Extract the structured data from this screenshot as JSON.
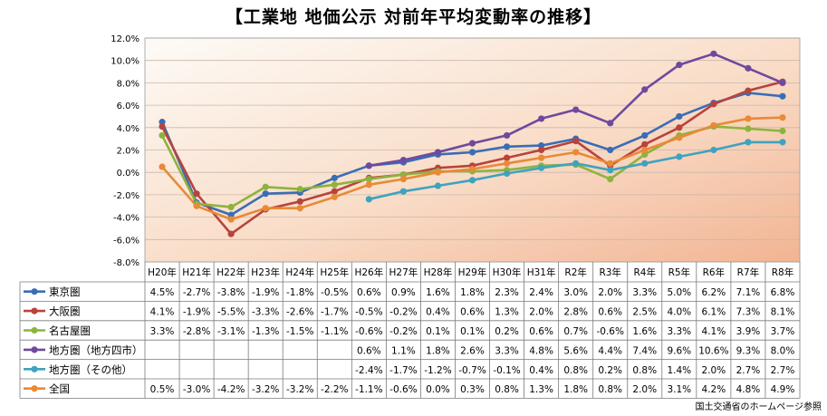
{
  "title": "【工業地 地価公示 対前年平均変動率の推移】",
  "source_note": "国土交通省のホームページ参照",
  "chart_data": {
    "type": "line",
    "title": "【工業地 地価公示 対前年平均変動率の推移】",
    "xlabel": "",
    "ylabel": "",
    "ylim": [
      -8.0,
      12.0
    ],
    "y_tick_step": 2.0,
    "y_tick_labels": [
      "12.0%",
      "10.0%",
      "8.0%",
      "6.0%",
      "4.0%",
      "2.0%",
      "0.0%",
      "-2.0%",
      "-4.0%",
      "-6.0%",
      "-8.0%"
    ],
    "grid": true,
    "plot_background": "gradient-peach",
    "legend_placement": "data-table-left",
    "categories": [
      "H20年",
      "H21年",
      "H22年",
      "H23年",
      "H24年",
      "H25年",
      "H26年",
      "H27年",
      "H28年",
      "H29年",
      "H30年",
      "H31年",
      "R2年",
      "R3年",
      "R4年",
      "R5年",
      "R6年",
      "R7年",
      "R8年"
    ],
    "series": [
      {
        "name": "東京圏",
        "color": "#3a6db5",
        "values": [
          4.5,
          -2.7,
          -3.8,
          -1.9,
          -1.8,
          -0.5,
          0.6,
          0.9,
          1.6,
          1.8,
          2.3,
          2.4,
          3.0,
          2.0,
          3.3,
          5.0,
          6.2,
          7.1,
          6.8
        ],
        "labels": [
          "4.5%",
          "-2.7%",
          "-3.8%",
          "-1.9%",
          "-1.8%",
          "-0.5%",
          "0.6%",
          "0.9%",
          "1.6%",
          "1.8%",
          "2.3%",
          "2.4%",
          "3.0%",
          "2.0%",
          "3.3%",
          "5.0%",
          "6.2%",
          "7.1%",
          "6.8%"
        ]
      },
      {
        "name": "大阪圏",
        "color": "#b8433c",
        "values": [
          4.1,
          -1.9,
          -5.5,
          -3.3,
          -2.6,
          -1.7,
          -0.5,
          -0.2,
          0.4,
          0.6,
          1.3,
          2.0,
          2.8,
          0.6,
          2.5,
          4.0,
          6.1,
          7.3,
          8.1
        ],
        "labels": [
          "4.1%",
          "-1.9%",
          "-5.5%",
          "-3.3%",
          "-2.6%",
          "-1.7%",
          "-0.5%",
          "-0.2%",
          "0.4%",
          "0.6%",
          "1.3%",
          "2.0%",
          "2.8%",
          "0.6%",
          "2.5%",
          "4.0%",
          "6.1%",
          "7.3%",
          "8.1%"
        ]
      },
      {
        "name": "名古屋圏",
        "color": "#8db33f",
        "values": [
          3.3,
          -2.8,
          -3.1,
          -1.3,
          -1.5,
          -1.1,
          -0.6,
          -0.2,
          0.1,
          0.1,
          0.2,
          0.6,
          0.7,
          -0.6,
          1.6,
          3.3,
          4.1,
          3.9,
          3.7
        ],
        "labels": [
          "3.3%",
          "-2.8%",
          "-3.1%",
          "-1.3%",
          "-1.5%",
          "-1.1%",
          "-0.6%",
          "-0.2%",
          "0.1%",
          "0.1%",
          "0.2%",
          "0.6%",
          "0.7%",
          "-0.6%",
          "1.6%",
          "3.3%",
          "4.1%",
          "3.9%",
          "3.7%"
        ]
      },
      {
        "name": "地方圏（地方四市）",
        "color": "#6e4a9e",
        "values": [
          null,
          null,
          null,
          null,
          null,
          null,
          0.6,
          1.1,
          1.8,
          2.6,
          3.3,
          4.8,
          5.6,
          4.4,
          7.4,
          9.6,
          10.6,
          9.3,
          8.0
        ],
        "labels": [
          "",
          "",
          "",
          "",
          "",
          "",
          "0.6%",
          "1.1%",
          "1.8%",
          "2.6%",
          "3.3%",
          "4.8%",
          "5.6%",
          "4.4%",
          "7.4%",
          "9.6%",
          "10.6%",
          "9.3%",
          "8.0%"
        ]
      },
      {
        "name": "地方圏（その他）",
        "color": "#3fa3bf",
        "values": [
          null,
          null,
          null,
          null,
          null,
          null,
          -2.4,
          -1.7,
          -1.2,
          -0.7,
          -0.1,
          0.4,
          0.8,
          0.2,
          0.8,
          1.4,
          2.0,
          2.7,
          2.7
        ],
        "labels": [
          "",
          "",
          "",
          "",
          "",
          "",
          "-2.4%",
          "-1.7%",
          "-1.2%",
          "-0.7%",
          "-0.1%",
          "0.4%",
          "0.8%",
          "0.2%",
          "0.8%",
          "1.4%",
          "2.0%",
          "2.7%",
          "2.7%"
        ]
      },
      {
        "name": "全国",
        "color": "#e88a36",
        "values": [
          0.5,
          -3.0,
          -4.2,
          -3.2,
          -3.2,
          -2.2,
          -1.1,
          -0.6,
          0.0,
          0.3,
          0.8,
          1.3,
          1.8,
          0.8,
          2.0,
          3.1,
          4.2,
          4.8,
          4.9
        ],
        "labels": [
          "0.5%",
          "-3.0%",
          "-4.2%",
          "-3.2%",
          "-3.2%",
          "-2.2%",
          "-1.1%",
          "-0.6%",
          "0.0%",
          "0.3%",
          "0.8%",
          "1.3%",
          "1.8%",
          "0.8%",
          "2.0%",
          "3.1%",
          "4.2%",
          "4.8%",
          "4.9%"
        ]
      }
    ]
  }
}
